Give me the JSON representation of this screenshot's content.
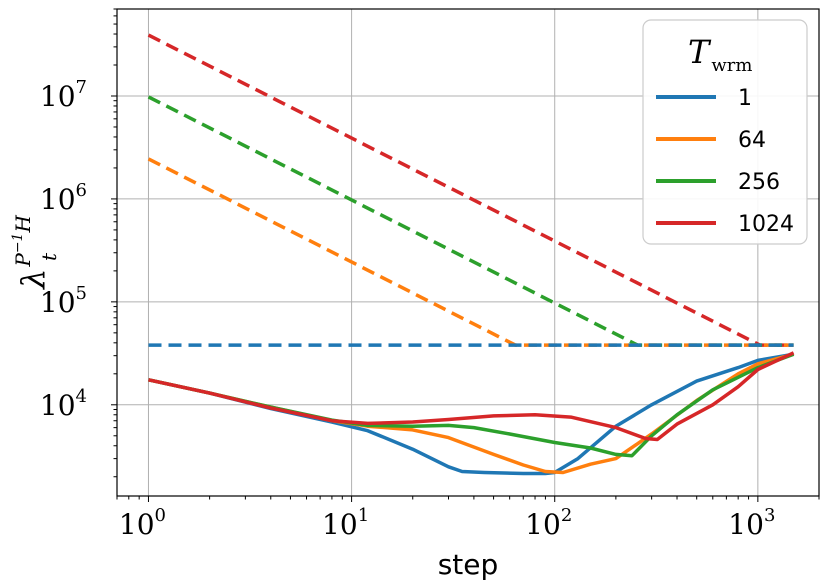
{
  "chart_data": {
    "type": "line",
    "xlabel": "step",
    "ylabel": "λ_t^{P^{-1}H}",
    "xscale": "log",
    "yscale": "log",
    "xlim": [
      0.7,
      2000
    ],
    "ylim": [
      1300,
      70000000
    ],
    "grid": true,
    "legend": {
      "title": "T_wrm",
      "placement": "top-right"
    },
    "x_ticks": [
      {
        "base": "10",
        "exp": "0",
        "value": 1
      },
      {
        "base": "10",
        "exp": "1",
        "value": 10
      },
      {
        "base": "10",
        "exp": "2",
        "value": 100
      },
      {
        "base": "10",
        "exp": "3",
        "value": 1000
      }
    ],
    "y_ticks": [
      {
        "base": "10",
        "exp": "4",
        "value": 10000
      },
      {
        "base": "10",
        "exp": "5",
        "value": 100000
      },
      {
        "base": "10",
        "exp": "6",
        "value": 1000000
      },
      {
        "base": "10",
        "exp": "7",
        "value": 10000000
      }
    ],
    "series": [
      {
        "name": "1",
        "color": "#1f77b4",
        "threshold_dashed": [
          [
            1,
            38000
          ],
          [
            1500,
            38000
          ]
        ],
        "values": [
          [
            1,
            17500
          ],
          [
            2,
            13000
          ],
          [
            4,
            9200
          ],
          [
            8,
            6800
          ],
          [
            12,
            5600
          ],
          [
            20,
            3700
          ],
          [
            30,
            2500
          ],
          [
            35,
            2250
          ],
          [
            45,
            2200
          ],
          [
            70,
            2150
          ],
          [
            90,
            2150
          ],
          [
            100,
            2200
          ],
          [
            130,
            3000
          ],
          [
            200,
            6200
          ],
          [
            300,
            10000
          ],
          [
            500,
            17000
          ],
          [
            800,
            23000
          ],
          [
            1000,
            27000
          ],
          [
            1500,
            31000
          ]
        ]
      },
      {
        "name": "64",
        "color": "#ff7f0e",
        "threshold_dashed": [
          [
            1,
            2450000
          ],
          [
            64,
            38000
          ],
          [
            1500,
            38000
          ]
        ],
        "values": [
          [
            1,
            17500
          ],
          [
            2,
            13000
          ],
          [
            4,
            9500
          ],
          [
            8,
            7000
          ],
          [
            12,
            6200
          ],
          [
            20,
            5700
          ],
          [
            30,
            4800
          ],
          [
            50,
            3300
          ],
          [
            70,
            2600
          ],
          [
            90,
            2250
          ],
          [
            110,
            2200
          ],
          [
            150,
            2650
          ],
          [
            200,
            3000
          ],
          [
            300,
            5200
          ],
          [
            500,
            11000
          ],
          [
            800,
            20000
          ],
          [
            1000,
            25000
          ],
          [
            1500,
            31000
          ]
        ]
      },
      {
        "name": "256",
        "color": "#2ca02c",
        "threshold_dashed": [
          [
            1,
            9800000
          ],
          [
            256,
            38000
          ],
          [
            1500,
            38000
          ]
        ],
        "values": [
          [
            1,
            17500
          ],
          [
            2,
            13000
          ],
          [
            4,
            9500
          ],
          [
            8,
            7100
          ],
          [
            12,
            6300
          ],
          [
            20,
            6200
          ],
          [
            30,
            6300
          ],
          [
            40,
            6000
          ],
          [
            60,
            5200
          ],
          [
            100,
            4300
          ],
          [
            150,
            3800
          ],
          [
            200,
            3300
          ],
          [
            240,
            3200
          ],
          [
            300,
            5000
          ],
          [
            400,
            8000
          ],
          [
            600,
            14000
          ],
          [
            1000,
            23000
          ],
          [
            1500,
            31000
          ]
        ]
      },
      {
        "name": "1024",
        "color": "#d62728",
        "threshold_dashed": [
          [
            1,
            39000000
          ],
          [
            1024,
            38000
          ],
          [
            1500,
            38000
          ]
        ],
        "values": [
          [
            1,
            17500
          ],
          [
            2,
            13000
          ],
          [
            4,
            9300
          ],
          [
            8,
            7000
          ],
          [
            12,
            6600
          ],
          [
            20,
            6800
          ],
          [
            30,
            7200
          ],
          [
            50,
            7800
          ],
          [
            80,
            8000
          ],
          [
            120,
            7600
          ],
          [
            200,
            6000
          ],
          [
            280,
            4700
          ],
          [
            320,
            4600
          ],
          [
            400,
            6500
          ],
          [
            600,
            10000
          ],
          [
            800,
            15000
          ],
          [
            1000,
            22000
          ],
          [
            1500,
            32000
          ]
        ]
      }
    ]
  }
}
